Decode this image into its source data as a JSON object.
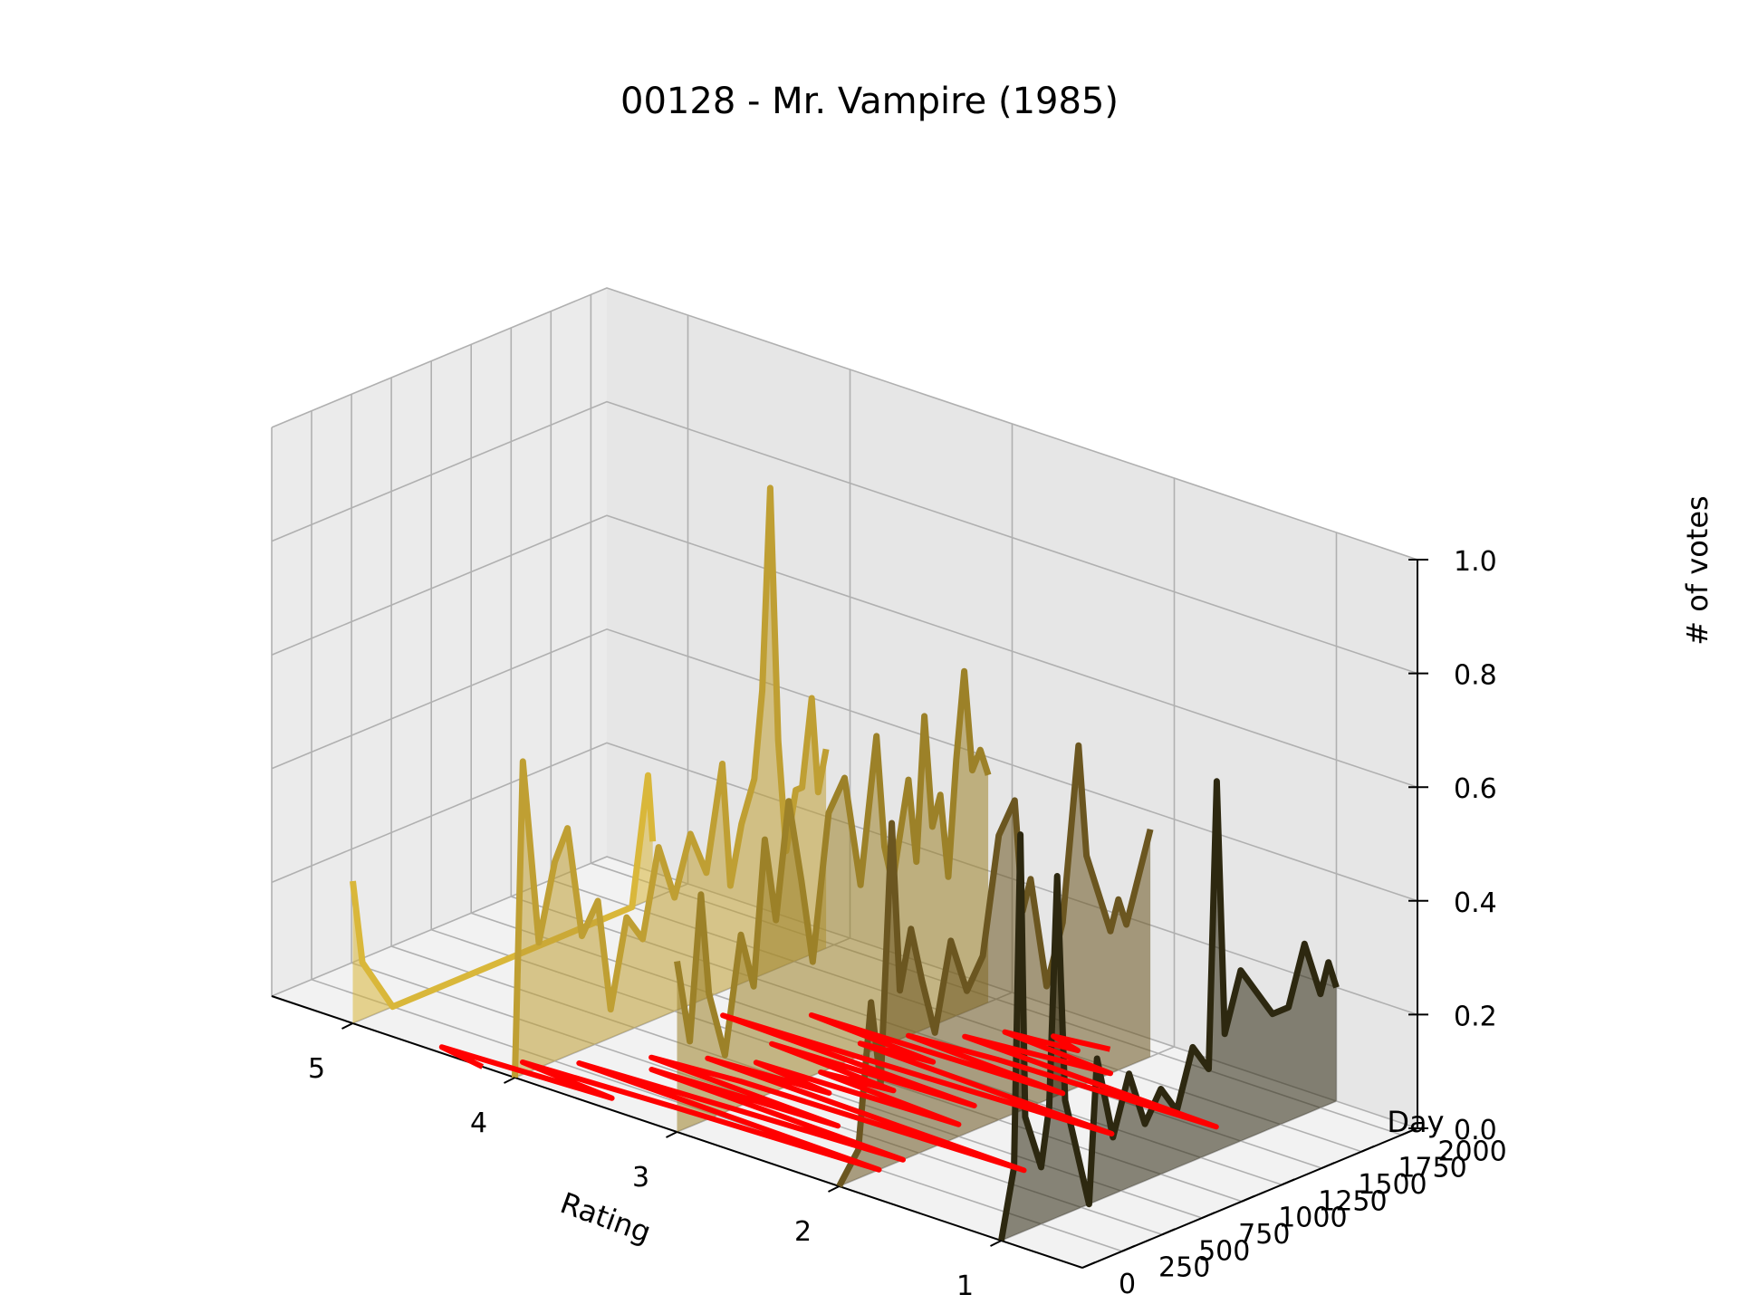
{
  "chart_data": {
    "type": "line",
    "subtype": "3d-line-with-filled-area",
    "title": "00128 - Mr. Vampire (1985)",
    "xlabel": "Rating",
    "ylabel": "Day",
    "zlabel": "# of votes",
    "x_ticks": [
      "5",
      "4",
      "3",
      "2",
      "1"
    ],
    "y_ticks": [
      "0",
      "250",
      "500",
      "750",
      "1000",
      "1250",
      "1500",
      "1750",
      "2000"
    ],
    "z_ticks": [
      "0.0",
      "0.2",
      "0.4",
      "0.6",
      "0.8",
      "1.0"
    ],
    "xlim": [
      0.5,
      5.5
    ],
    "ylim": [
      0,
      2100
    ],
    "zlim": [
      0,
      1.0
    ],
    "grid": true,
    "series": [
      {
        "rating": 5,
        "color": "#d9b73a",
        "points": [
          [
            0,
            0.25
          ],
          [
            60,
            0.1
          ],
          [
            250,
            0.0
          ],
          [
            1000,
            0.0
          ],
          [
            1750,
            0.0
          ],
          [
            1850,
            0.22
          ],
          [
            1880,
            0.1
          ]
        ]
      },
      {
        "rating": 4,
        "color": "#bf9f33",
        "points": [
          [
            0,
            0.0
          ],
          [
            50,
            0.55
          ],
          [
            150,
            0.22
          ],
          [
            250,
            0.35
          ],
          [
            330,
            0.4
          ],
          [
            420,
            0.2
          ],
          [
            520,
            0.25
          ],
          [
            600,
            0.05
          ],
          [
            700,
            0.2
          ],
          [
            800,
            0.15
          ],
          [
            900,
            0.3
          ],
          [
            1000,
            0.2
          ],
          [
            1100,
            0.3
          ],
          [
            1200,
            0.22
          ],
          [
            1300,
            0.4
          ],
          [
            1350,
            0.18
          ],
          [
            1420,
            0.28
          ],
          [
            1500,
            0.35
          ],
          [
            1550,
            0.5
          ],
          [
            1600,
            0.85
          ],
          [
            1650,
            0.4
          ],
          [
            1700,
            0.2
          ],
          [
            1760,
            0.3
          ],
          [
            1800,
            0.3
          ],
          [
            1860,
            0.45
          ],
          [
            1900,
            0.28
          ],
          [
            1950,
            0.35
          ]
        ]
      },
      {
        "rating": 3,
        "color": "#9c8128",
        "points": [
          [
            0,
            0.3
          ],
          [
            80,
            0.15
          ],
          [
            150,
            0.4
          ],
          [
            200,
            0.22
          ],
          [
            300,
            0.1
          ],
          [
            400,
            0.3
          ],
          [
            480,
            0.2
          ],
          [
            550,
            0.45
          ],
          [
            620,
            0.3
          ],
          [
            700,
            0.5
          ],
          [
            780,
            0.35
          ],
          [
            850,
            0.2
          ],
          [
            950,
            0.45
          ],
          [
            1050,
            0.5
          ],
          [
            1100,
            0.4
          ],
          [
            1150,
            0.3
          ],
          [
            1250,
            0.55
          ],
          [
            1300,
            0.35
          ],
          [
            1350,
            0.28
          ],
          [
            1450,
            0.45
          ],
          [
            1500,
            0.3
          ],
          [
            1550,
            0.55
          ],
          [
            1600,
            0.35
          ],
          [
            1650,
            0.4
          ],
          [
            1700,
            0.25
          ],
          [
            1750,
            0.45
          ],
          [
            1800,
            0.6
          ],
          [
            1850,
            0.42
          ],
          [
            1900,
            0.45
          ],
          [
            1950,
            0.4
          ]
        ]
      },
      {
        "rating": 2,
        "color": "#6b5620",
        "points": [
          [
            0,
            0.0
          ],
          [
            120,
            0.05
          ],
          [
            200,
            0.3
          ],
          [
            260,
            0.15
          ],
          [
            330,
            0.6
          ],
          [
            380,
            0.3
          ],
          [
            450,
            0.4
          ],
          [
            520,
            0.3
          ],
          [
            600,
            0.2
          ],
          [
            700,
            0.35
          ],
          [
            800,
            0.25
          ],
          [
            900,
            0.3
          ],
          [
            1000,
            0.5
          ],
          [
            1100,
            0.55
          ],
          [
            1150,
            0.35
          ],
          [
            1200,
            0.4
          ],
          [
            1300,
            0.2
          ],
          [
            1400,
            0.3
          ],
          [
            1500,
            0.6
          ],
          [
            1550,
            0.4
          ],
          [
            1600,
            0.35
          ],
          [
            1700,
            0.25
          ],
          [
            1750,
            0.3
          ],
          [
            1800,
            0.25
          ],
          [
            1850,
            0.3
          ],
          [
            1900,
            0.35
          ],
          [
            1950,
            0.4
          ]
        ]
      },
      {
        "rating": 1,
        "color": "#2d2810",
        "points": [
          [
            0,
            0.0
          ],
          [
            80,
            0.12
          ],
          [
            120,
            0.7
          ],
          [
            150,
            0.2
          ],
          [
            250,
            0.1
          ],
          [
            300,
            0.2
          ],
          [
            350,
            0.6
          ],
          [
            400,
            0.2
          ],
          [
            550,
            0.0
          ],
          [
            600,
            0.25
          ],
          [
            700,
            0.1
          ],
          [
            800,
            0.2
          ],
          [
            900,
            0.1
          ],
          [
            1000,
            0.15
          ],
          [
            1100,
            0.1
          ],
          [
            1200,
            0.2
          ],
          [
            1300,
            0.15
          ],
          [
            1350,
            0.65
          ],
          [
            1400,
            0.2
          ],
          [
            1500,
            0.3
          ],
          [
            1600,
            0.25
          ],
          [
            1700,
            0.2
          ],
          [
            1800,
            0.2
          ],
          [
            1900,
            0.3
          ],
          [
            1950,
            0.25
          ],
          [
            2000,
            0.2
          ],
          [
            2050,
            0.25
          ],
          [
            2100,
            0.2
          ]
        ]
      }
    ],
    "mean_series": {
      "color": "#ff0000",
      "points": [
        [
          0,
          4.2
        ],
        [
          50,
          4.5
        ],
        [
          100,
          3.5
        ],
        [
          150,
          4.1
        ],
        [
          200,
          3.2
        ],
        [
          250,
          2.0
        ],
        [
          300,
          3.9
        ],
        [
          350,
          3.0
        ],
        [
          400,
          2.0
        ],
        [
          450,
          3.6
        ],
        [
          500,
          2.5
        ],
        [
          550,
          3.7
        ],
        [
          600,
          3.2
        ],
        [
          650,
          1.5
        ],
        [
          700,
          3.5
        ],
        [
          750,
          2.8
        ],
        [
          800,
          3.3
        ],
        [
          850,
          2.1
        ],
        [
          900,
          3.0
        ],
        [
          950,
          2.6
        ],
        [
          1000,
          3.4
        ],
        [
          1050,
          2.2
        ],
        [
          1100,
          3.8
        ],
        [
          1150,
          2.6
        ],
        [
          1200,
          1.5
        ],
        [
          1250,
          3.1
        ],
        [
          1300,
          2.7
        ],
        [
          1350,
          3.5
        ],
        [
          1400,
          2.0
        ],
        [
          1450,
          3.0
        ],
        [
          1500,
          2.5
        ],
        [
          1550,
          1.2
        ],
        [
          1600,
          2.8
        ],
        [
          1650,
          2.4
        ],
        [
          1700,
          2.0
        ],
        [
          1750,
          2.7
        ],
        [
          1800,
          2.3
        ],
        [
          1850,
          2.5
        ],
        [
          1900,
          2.2
        ]
      ]
    }
  }
}
